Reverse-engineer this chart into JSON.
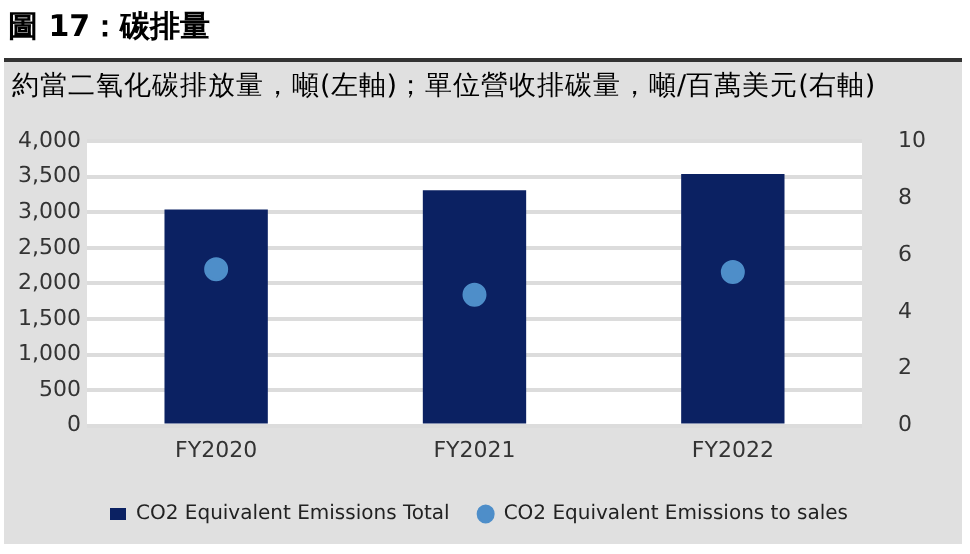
{
  "chart_data": {
    "type": "bar",
    "title": "圖 17：碳排量",
    "subtitle": "約當二氧化碳排放量，噸(左軸)；單位營收排碳量，噸/百萬美元(右軸)",
    "categories": [
      "FY2020",
      "FY2021",
      "FY2022"
    ],
    "series": [
      {
        "name": "CO2 Equivalent Emissions Total",
        "color": "#0b2162",
        "values": [
          3040,
          3310,
          3540
        ]
      },
      {
        "name": "CO2 Equivalent Emissions to sales",
        "type": "scatter",
        "axis": "y2",
        "color": "#4e8ec9",
        "x": [
          "FY2020",
          "FY2021",
          "FY2022"
        ],
        "values": [
          5.5,
          4.6,
          5.4
        ]
      }
    ],
    "ylim": [
      0,
      4000
    ],
    "yticks": [
      {
        "value": 0,
        "label": "0"
      },
      {
        "value": 500,
        "label": "500"
      },
      {
        "value": 1000,
        "label": "1,000"
      },
      {
        "value": 1500,
        "label": "1,500"
      },
      {
        "value": 2000,
        "label": "2,000"
      },
      {
        "value": 2500,
        "label": "2,500"
      },
      {
        "value": 3000,
        "label": "3,000"
      },
      {
        "value": 3500,
        "label": "3,500"
      },
      {
        "value": 4000,
        "label": "4,000"
      }
    ],
    "y2lim": [
      0,
      10
    ],
    "y2ticks": [
      0,
      2,
      4,
      6,
      8,
      10
    ],
    "grid": "y",
    "legend": "bottom",
    "marker": "circle"
  }
}
